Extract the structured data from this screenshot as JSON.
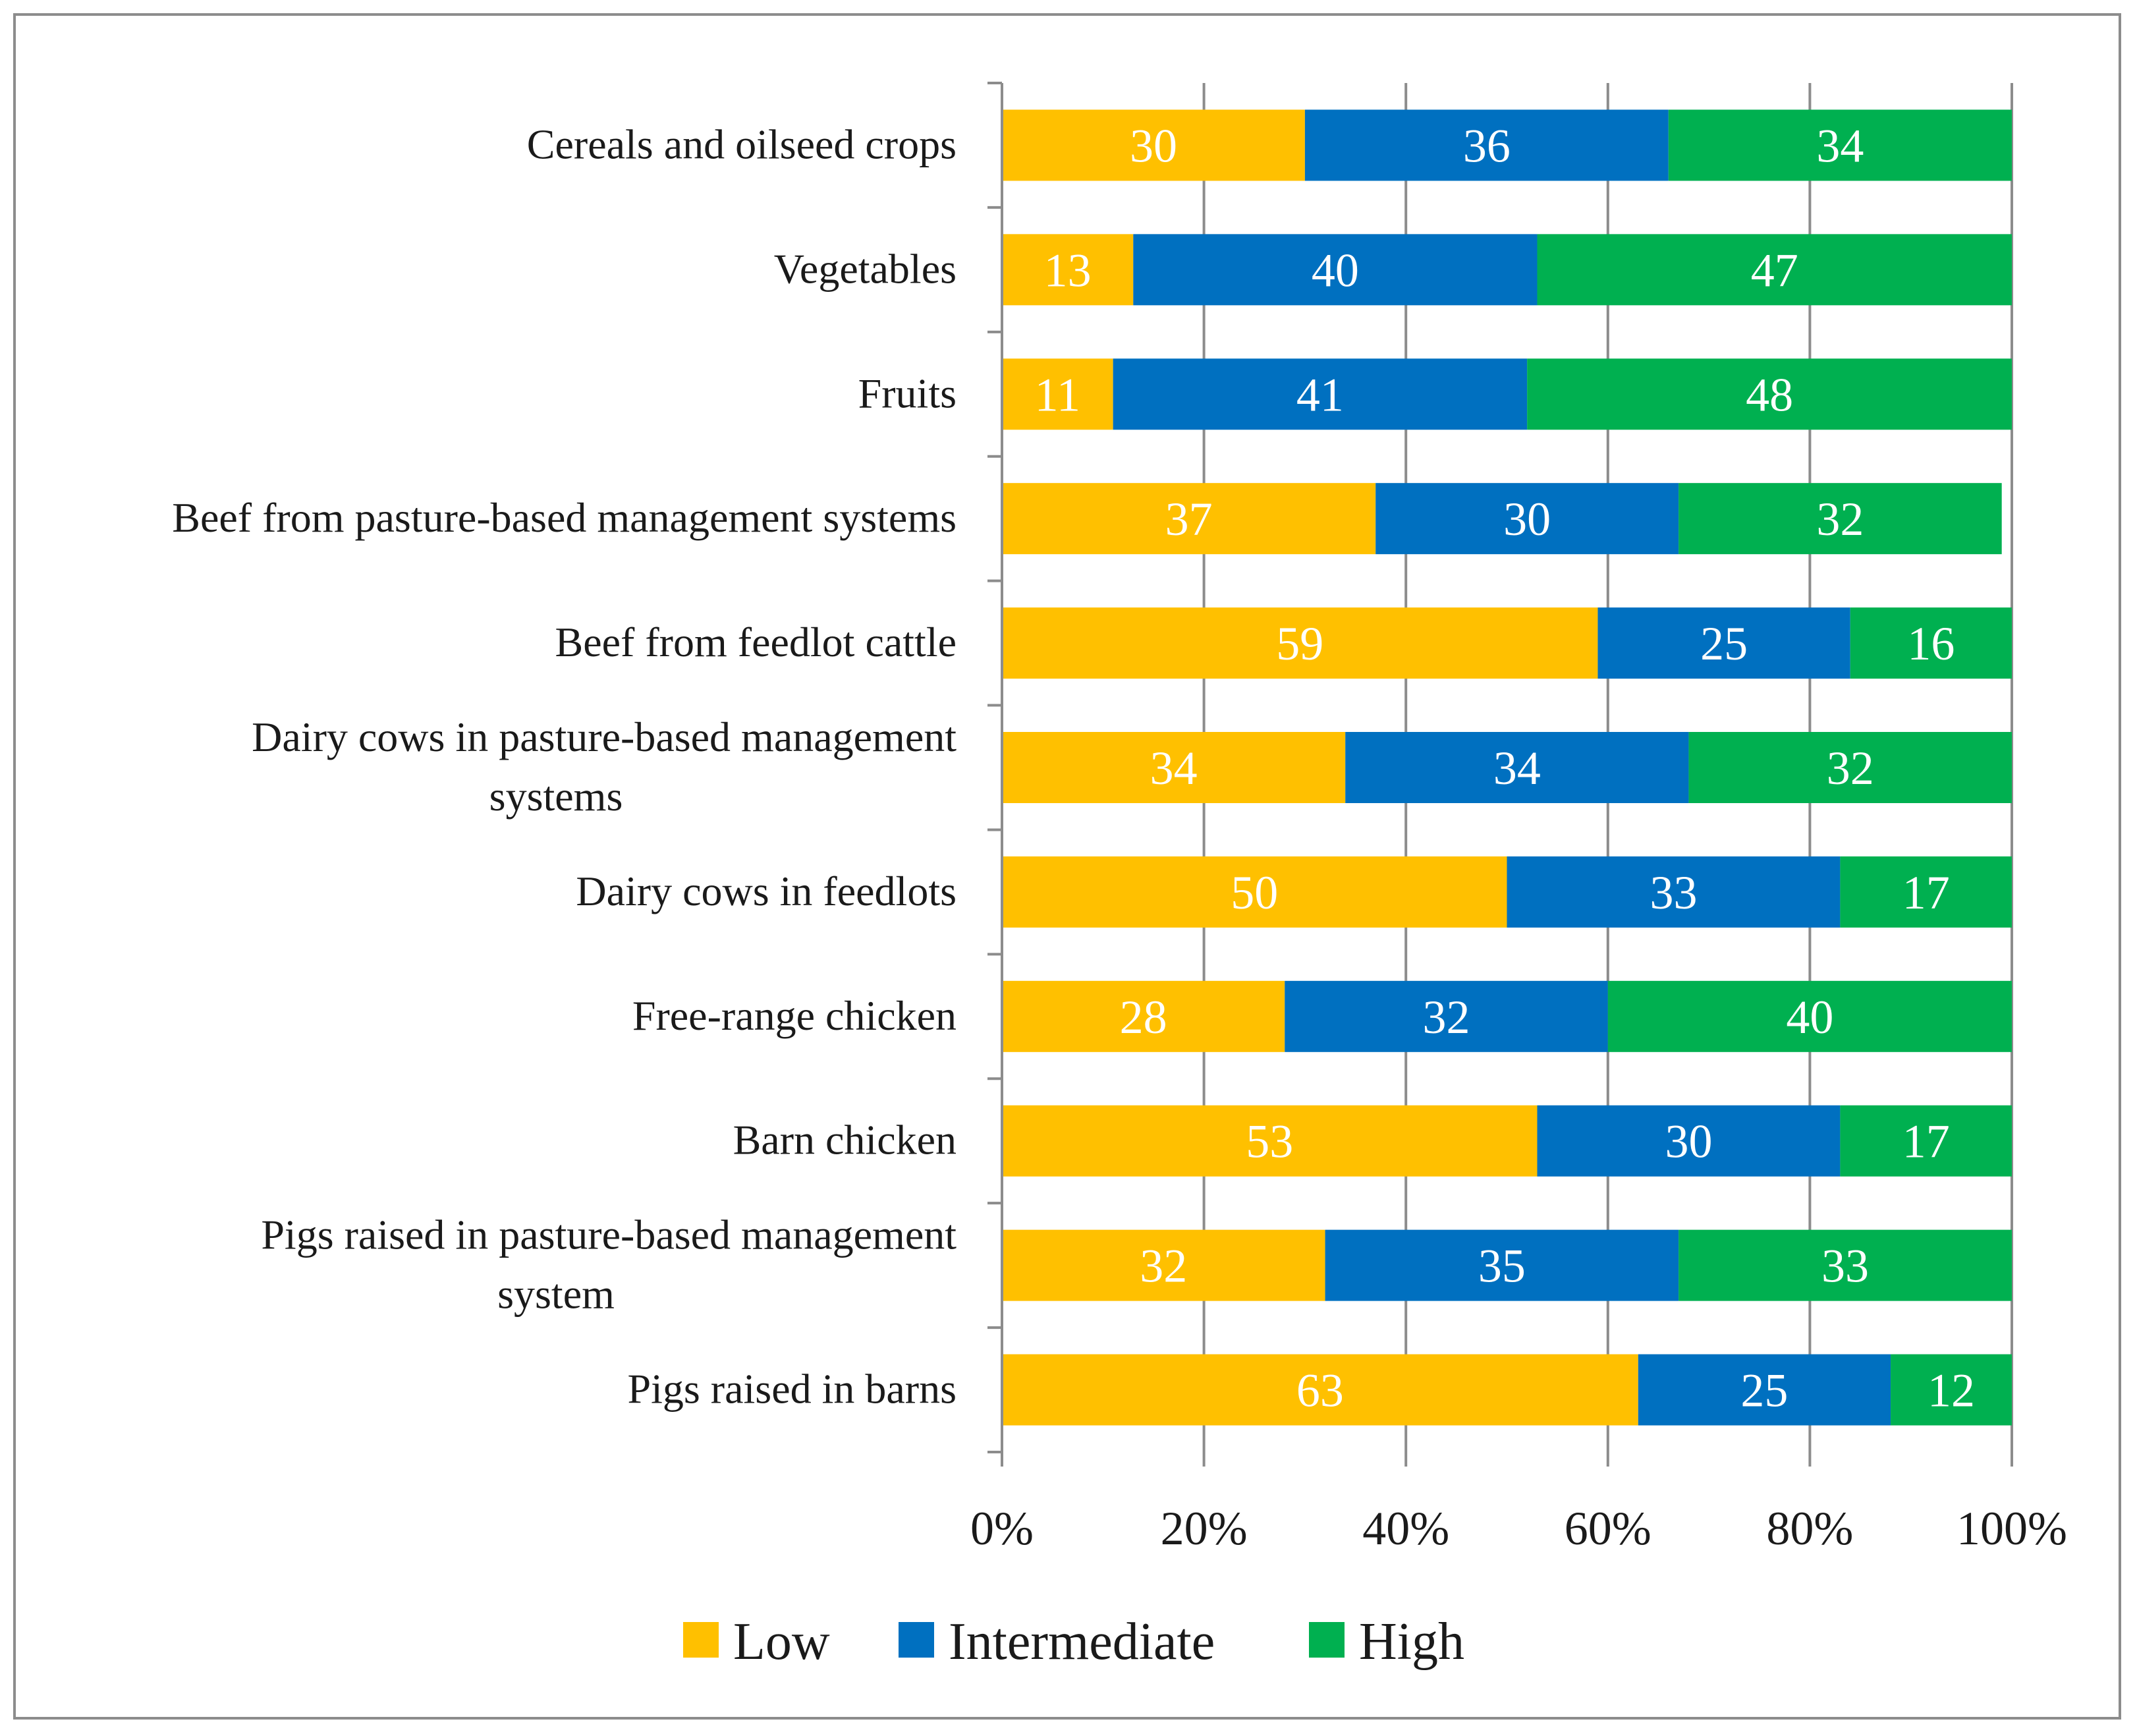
{
  "chart_data": {
    "type": "bar",
    "orientation": "horizontal",
    "stacked": "percent",
    "title": "",
    "xlabel": "",
    "ylabel": "",
    "xlim": [
      0,
      100
    ],
    "x_ticks": [
      "0%",
      "20%",
      "40%",
      "60%",
      "80%",
      "100%"
    ],
    "grid": true,
    "legend_position": "bottom",
    "categories": [
      [
        "Cereals and oilseed crops"
      ],
      [
        "Vegetables"
      ],
      [
        "Fruits"
      ],
      [
        "Beef from pasture-based management systems"
      ],
      [
        "Beef from feedlot cattle"
      ],
      [
        "Dairy cows in pasture-based management",
        "systems"
      ],
      [
        "Dairy cows in feedlots"
      ],
      [
        "Free-range chicken"
      ],
      [
        "Barn chicken"
      ],
      [
        "Pigs raised in pasture-based management",
        "system"
      ],
      [
        "Pigs raised in barns"
      ]
    ],
    "series": [
      {
        "name": "Low",
        "color": "#FFC000",
        "values": [
          30,
          13,
          11,
          37,
          59,
          34,
          50,
          28,
          53,
          32,
          63
        ]
      },
      {
        "name": "Intermediate",
        "color": "#0070C0",
        "values": [
          36,
          40,
          41,
          30,
          25,
          34,
          33,
          32,
          30,
          35,
          25
        ]
      },
      {
        "name": "High",
        "color": "#00B050",
        "values": [
          34,
          47,
          48,
          32,
          16,
          32,
          17,
          40,
          17,
          33,
          12
        ]
      }
    ]
  }
}
